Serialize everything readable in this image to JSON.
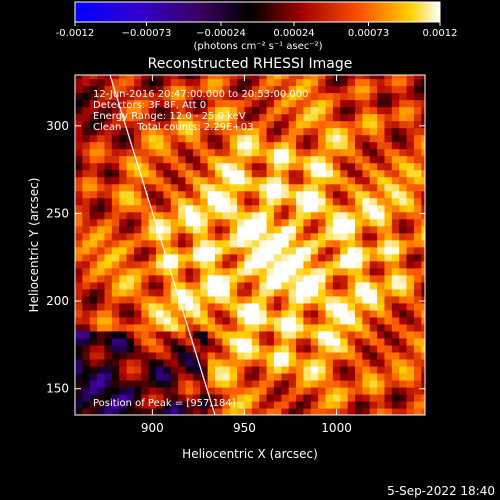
{
  "chart_data": {
    "type": "heatmap",
    "title": "Reconstructed RHESSI Image",
    "xlabel": "Heliocentric X (arcsec)",
    "ylabel": "Heliocentric Y (arcsec)",
    "xlim": [
      858,
      1048
    ],
    "ylim": [
      135,
      329
    ],
    "xticks": [
      900,
      950,
      1000
    ],
    "yticks": [
      150,
      200,
      250,
      300
    ],
    "colorbar": {
      "range": [
        -0.0012,
        0.0012
      ],
      "ticks": [
        -0.0012,
        -0.00073,
        -0.00024,
        0.00024,
        0.00073,
        0.0012
      ],
      "tick_labels": [
        "-0.0012",
        "−0.00073",
        "−0.00024",
        "0.00024",
        "0.00073",
        "0.0012"
      ],
      "units": "(photons cm⁻² s⁻¹ asec⁻²)",
      "colormap": [
        "#0000ff",
        "#4400aa",
        "#000000",
        "#aa0000",
        "#ff6000",
        "#ffd000",
        "#ffffff"
      ]
    },
    "annotations": [
      "12-Jun-2016 20:47:00.000 to 20:53:00.000",
      "Detectors: 3F 8F, Att 0",
      "Energy Range: 12.0 - 25.0 keV",
      "Clean     Total counts: 2.29E+03"
    ],
    "peak_label": "Position of Peak = [957,184]",
    "peak": {
      "x": 957,
      "y": 184
    },
    "limb_line": [
      [
        877,
        329
      ],
      [
        934,
        135
      ]
    ],
    "grid": false
  },
  "footer": {
    "date": "5-Sep-2022 18:40"
  }
}
